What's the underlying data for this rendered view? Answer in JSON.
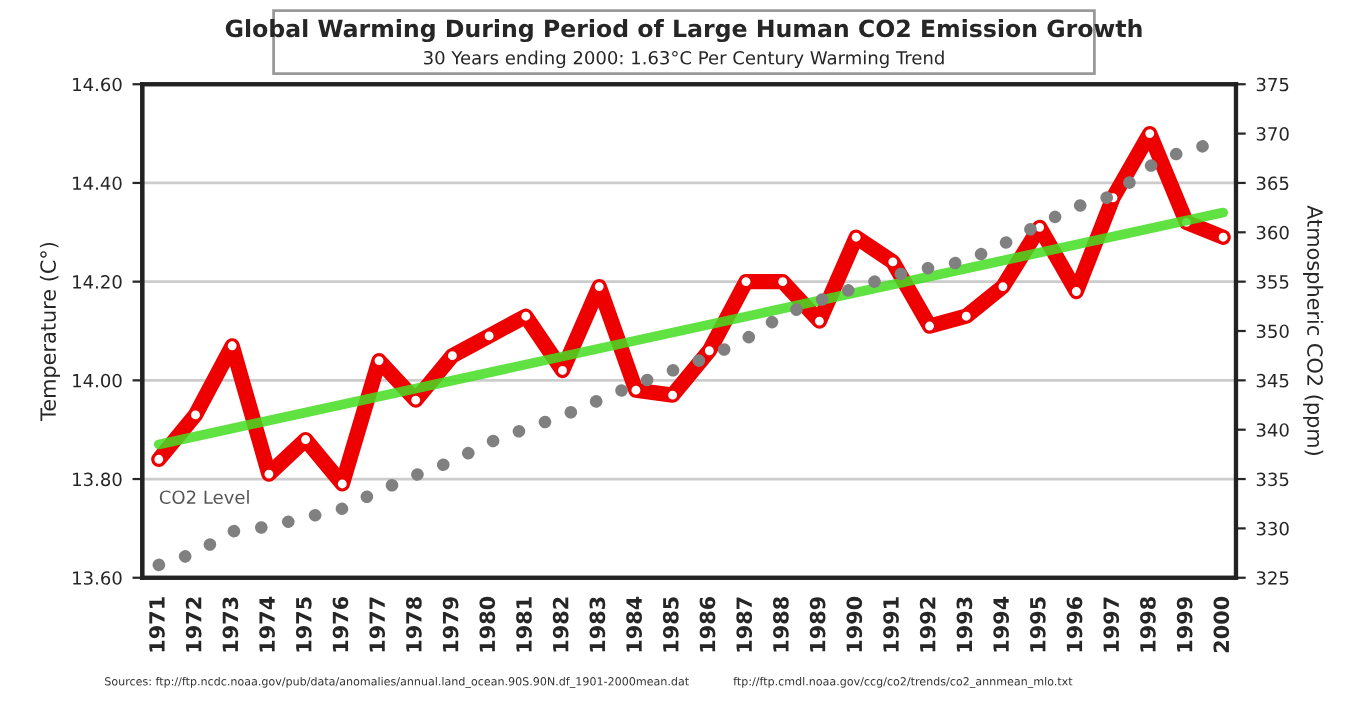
{
  "chart_data": {
    "type": "line",
    "title": "Global Warming During Period of Large Human CO2 Emission Growth",
    "subtitle": "30 Years ending 2000: 1.63°C Per Century Warming Trend",
    "ylabel": "Temperature (C°)",
    "y2label": "Atmospheric CO2 (ppm)",
    "x": [
      1971,
      1972,
      1973,
      1974,
      1975,
      1976,
      1977,
      1978,
      1979,
      1980,
      1981,
      1982,
      1983,
      1984,
      1985,
      1986,
      1987,
      1988,
      1989,
      1990,
      1991,
      1992,
      1993,
      1994,
      1995,
      1996,
      1997,
      1998,
      1999,
      2000
    ],
    "xlim": [
      1970.55,
      2000.35
    ],
    "xticks": [
      1971,
      1972,
      1973,
      1974,
      1975,
      1976,
      1977,
      1978,
      1979,
      1980,
      1981,
      1982,
      1983,
      1984,
      1985,
      1986,
      1987,
      1988,
      1989,
      1990,
      1991,
      1992,
      1993,
      1994,
      1995,
      1996,
      1997,
      1998,
      1999,
      2000
    ],
    "ylim": [
      13.6,
      14.6
    ],
    "yticks": [
      {
        "value": 13.6,
        "label": "13.60"
      },
      {
        "value": 13.8,
        "label": "13.80"
      },
      {
        "value": 14.0,
        "label": "14.00"
      },
      {
        "value": 14.2,
        "label": "14.20"
      },
      {
        "value": 14.4,
        "label": "14.40"
      },
      {
        "value": 14.6,
        "label": "14.60"
      }
    ],
    "y2lim": [
      325,
      375
    ],
    "y2ticks": [
      325,
      330,
      335,
      340,
      345,
      350,
      355,
      360,
      365,
      370,
      375
    ],
    "grid": "y",
    "series": [
      {
        "axis": "y2",
        "name": "CO2 Level",
        "color": "#808080",
        "line_style": "dotted",
        "marker": "none",
        "values": [
          326.3,
          327.5,
          329.7,
          330.2,
          331.1,
          332.0,
          333.8,
          335.4,
          336.8,
          338.7,
          340.1,
          341.4,
          343.0,
          344.6,
          346.0,
          347.4,
          349.2,
          351.6,
          353.1,
          354.4,
          355.6,
          356.4,
          357.1,
          358.8,
          360.8,
          362.6,
          363.7,
          366.7,
          368.4,
          369.1
        ]
      },
      {
        "axis": "y",
        "color": "#ee0000",
        "line_style": "solid",
        "marker": "circle",
        "values": [
          13.84,
          13.93,
          14.07,
          13.81,
          13.88,
          13.79,
          14.04,
          13.96,
          14.05,
          14.09,
          14.13,
          14.02,
          14.19,
          13.98,
          13.97,
          14.06,
          14.2,
          14.2,
          14.12,
          14.29,
          14.24,
          14.11,
          14.13,
          14.19,
          14.31,
          14.18,
          14.37,
          14.5,
          14.32,
          14.29
        ]
      },
      {
        "axis": "y",
        "color": "#44dd22",
        "line_style": "solid",
        "marker": "none",
        "x": [
          1971,
          2000
        ],
        "values": [
          13.87,
          14.34
        ]
      }
    ],
    "annotations": [
      "Sources: ftp://ftp.ncdc.noaa.gov/pub/data/anomalies/annual.land_ocean.90S.90N.df_1901-2000mean.dat",
      "ftp://ftp.cmdl.noaa.gov/ccg/co2/trends/co2_annmean_mlo.txt"
    ]
  }
}
